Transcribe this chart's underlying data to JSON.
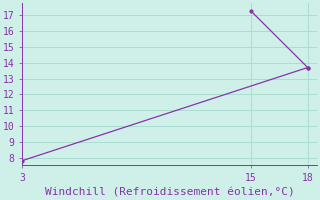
{
  "line1_x": [
    3,
    18
  ],
  "line1_y": [
    7.8,
    13.7
  ],
  "line2_x": [
    15,
    18
  ],
  "line2_y": [
    17.3,
    13.7
  ],
  "line_color": "#8833aa",
  "marker": ".",
  "marker_size": 4,
  "background_color": "#cff0e8",
  "grid_color": "#aaddd0",
  "xlabel": "Windchill (Refroidissement éolien,°C)",
  "xlabel_color": "#8833aa",
  "tick_color": "#8833aa",
  "xlim": [
    3,
    18.5
  ],
  "ylim": [
    7.5,
    17.8
  ],
  "xticks": [
    3,
    15,
    18
  ],
  "yticks": [
    8,
    9,
    10,
    11,
    12,
    13,
    14,
    15,
    16,
    17
  ],
  "font_size": 7,
  "xlabel_fontsize": 8
}
